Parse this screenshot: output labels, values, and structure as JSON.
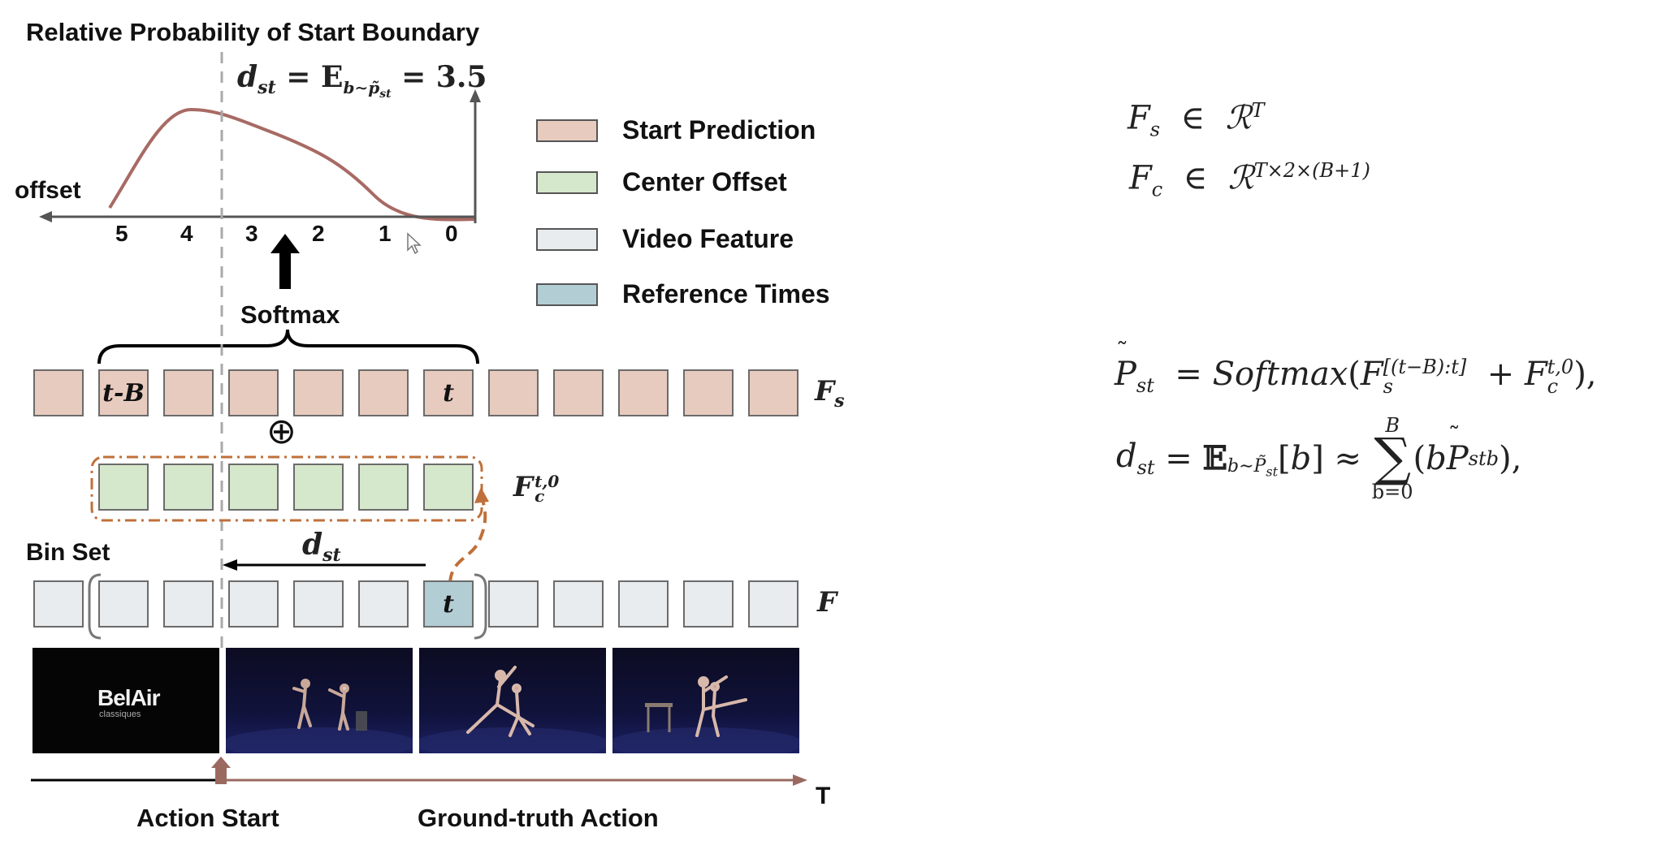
{
  "diagram": {
    "title": "Relative Probability of Start Boundary",
    "top_formula": "d_st = E_{b~p̃_st} = 3.5",
    "offset_label": "offset",
    "offset_ticks": [
      "5",
      "4",
      "3",
      "2",
      "1",
      "0"
    ],
    "softmax_label": "Softmax",
    "legend": [
      {
        "label": "Start Prediction",
        "color": "#e8cbbf"
      },
      {
        "label": "Center Offset",
        "color": "#d6e8cc"
      },
      {
        "label": "Video Feature",
        "color": "#e9ecee"
      },
      {
        "label": "Reference Times",
        "color": "#b2cdd4"
      }
    ],
    "row_fs": {
      "label": "F_s",
      "cell_count": 12,
      "cell_texts": [
        "",
        "t-B",
        "",
        "",
        "",
        "",
        "t",
        "",
        "",
        "",
        "",
        ""
      ]
    },
    "oplus": "⊕",
    "row_fc": {
      "label": "F_c^{t,0}",
      "cell_count": 6
    },
    "bin_set_label": "Bin Set",
    "dst_label": "d_st",
    "row_f": {
      "label": "F",
      "cell_count": 12,
      "ref_text": "t"
    },
    "frame_logo": "BelAir",
    "frame_logo_sub": "classiques",
    "timeline_label": "T",
    "action_start_label": "Action Start",
    "ground_truth_label": "Ground-truth Action",
    "colors": {
      "curve": "#a86a64",
      "dashed": "#aaaaaa",
      "orange_dash": "#c0703a",
      "timeline": "#9a6a60"
    }
  },
  "equations": {
    "fs": "F_s ∈ R^T",
    "fc": "F_c ∈ R^{T×2×(B+1)}",
    "pst": "P̃_st = Softmax(F_s^{[(t−B):t]} + F_c^{t,0}),",
    "dst": "d_st = E_{b∼P̃_st}[b] ≈ Σ_{b=0}^{B} (b P̃_stb),"
  }
}
